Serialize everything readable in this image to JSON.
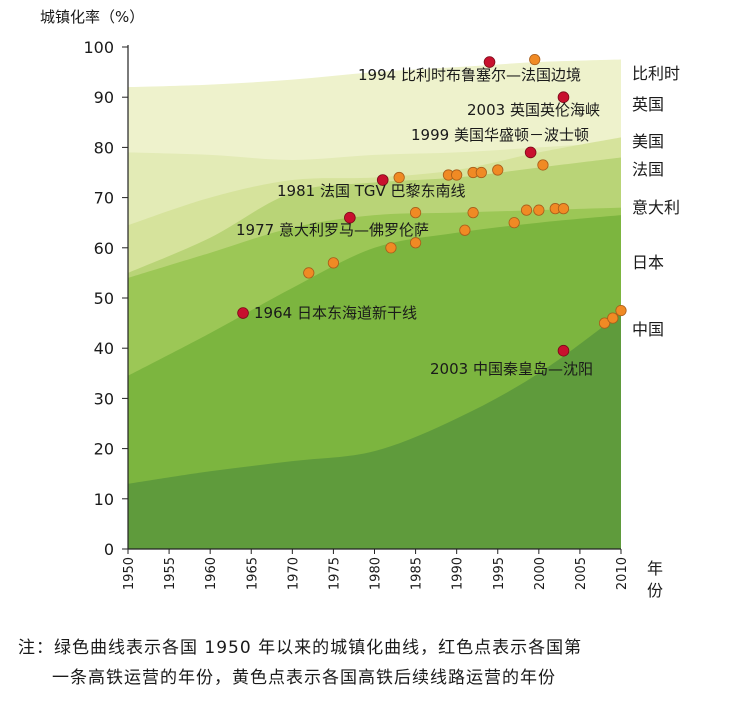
{
  "chart_data": {
    "type": "area",
    "ylabel": "城镇化率（%）",
    "xlabel": "年份",
    "xlim": [
      1950,
      2010
    ],
    "ylim": [
      0,
      100
    ],
    "x_ticks": [
      "1950",
      "1955",
      "1960",
      "1965",
      "1970",
      "1975",
      "1980",
      "1985",
      "1990",
      "1995",
      "2000",
      "2005",
      "2010"
    ],
    "y_ticks": [
      "0",
      "10",
      "20",
      "30",
      "40",
      "50",
      "60",
      "70",
      "80",
      "90",
      "100"
    ],
    "colors": {
      "first_line": "#c8102e",
      "follow_up_lines": "#f08a24"
    },
    "series": [
      {
        "name": "比利时",
        "color": "#eef2cc",
        "x": [
          1950,
          1960,
          1970,
          1980,
          1990,
          2000,
          2010
        ],
        "y": [
          92,
          92.5,
          93.5,
          95,
          96,
          97,
          97.5
        ]
      },
      {
        "name": "英国",
        "color": "#e3ebb6",
        "x": [
          1950,
          1960,
          1970,
          1980,
          1990,
          2000,
          2010
        ],
        "y": [
          79,
          78.5,
          77.5,
          78.5,
          79,
          80,
          81
        ]
      },
      {
        "name": "美国",
        "color": "#d6e39c",
        "x": [
          1950,
          1960,
          1970,
          1980,
          1990,
          2000,
          2010
        ],
        "y": [
          64.5,
          70,
          73.5,
          74,
          75.5,
          79,
          82
        ]
      },
      {
        "name": "法国",
        "color": "#b9d477",
        "x": [
          1950,
          1960,
          1970,
          1980,
          1990,
          2000,
          2010
        ],
        "y": [
          55,
          62,
          71,
          73,
          74,
          76,
          78
        ]
      },
      {
        "name": "意大利",
        "color": "#9cc756",
        "x": [
          1950,
          1960,
          1970,
          1980,
          1990,
          2000,
          2010
        ],
        "y": [
          54,
          59,
          64,
          66.5,
          67,
          67.5,
          68
        ]
      },
      {
        "name": "日本",
        "color": "#7cb53f",
        "x": [
          1950,
          1960,
          1970,
          1980,
          1990,
          2000,
          2010
        ],
        "y": [
          34.5,
          43,
          52,
          60,
          63,
          65,
          66.5
        ]
      },
      {
        "name": "中国",
        "color": "#5f9b3c",
        "x": [
          1950,
          1960,
          1970,
          1980,
          1990,
          2000,
          2010
        ],
        "y": [
          13,
          15.5,
          17.5,
          19.5,
          26,
          35,
          47
        ]
      }
    ],
    "first_lines": [
      {
        "label": "1994 比利时布鲁塞尔—法国边境",
        "x": 1994,
        "y": 97
      },
      {
        "label": "2003 英国英伦海峡",
        "x": 2003,
        "y": 90
      },
      {
        "label": "1999 美国华盛顿－波士顿",
        "x": 1999,
        "y": 79
      },
      {
        "label": "1981 法国 TGV 巴黎东南线",
        "x": 1981,
        "y": 73.5
      },
      {
        "label": "1977 意大利罗马—佛罗伦萨",
        "x": 1977,
        "y": 66
      },
      {
        "label": "1964 日本东海道新干线",
        "x": 1964,
        "y": 47
      },
      {
        "label": "2003 中国秦皇岛—沈阳",
        "x": 2003,
        "y": 39.5
      }
    ],
    "follow_up_lines": [
      {
        "x": 1999.5,
        "y": 97.5
      },
      {
        "x": 1983,
        "y": 74
      },
      {
        "x": 1989,
        "y": 74.5
      },
      {
        "x": 1990,
        "y": 74.5
      },
      {
        "x": 1992,
        "y": 75
      },
      {
        "x": 1993,
        "y": 75
      },
      {
        "x": 1995,
        "y": 75.5
      },
      {
        "x": 2000.5,
        "y": 76.5
      },
      {
        "x": 1992,
        "y": 67
      },
      {
        "x": 1998.5,
        "y": 67.5
      },
      {
        "x": 2000,
        "y": 67.5
      },
      {
        "x": 2002,
        "y": 67.8
      },
      {
        "x": 2003,
        "y": 67.8
      },
      {
        "x": 1985,
        "y": 67
      },
      {
        "x": 1991,
        "y": 63.5
      },
      {
        "x": 1997,
        "y": 65
      },
      {
        "x": 1972,
        "y": 55
      },
      {
        "x": 1975,
        "y": 57
      },
      {
        "x": 1982,
        "y": 60
      },
      {
        "x": 1985,
        "y": 61
      },
      {
        "x": 2008,
        "y": 45
      },
      {
        "x": 2009,
        "y": 46
      },
      {
        "x": 2010,
        "y": 47.5
      }
    ]
  },
  "note": {
    "line1": "注：绿色曲线表示各国 1950 年以来的城镇化曲线，红色点表示各国第",
    "line2": "一条高铁运营的年份，黄色点表示各国高铁后续线路运营的年份"
  }
}
